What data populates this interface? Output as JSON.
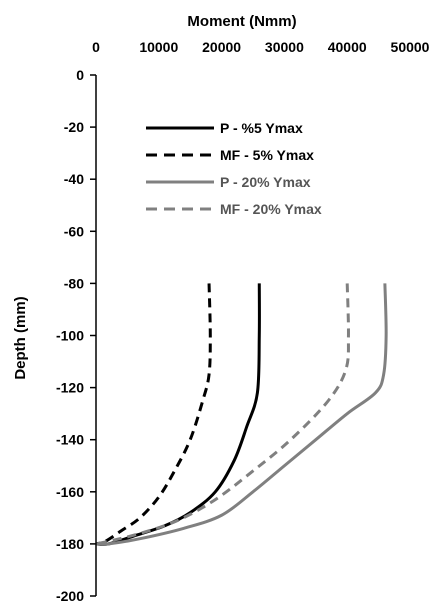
{
  "chart_data": {
    "type": "line",
    "title": "",
    "xlabel": "Moment (Nmm)",
    "ylabel": "Depth (mm)",
    "xlim": [
      0,
      50000
    ],
    "ylim": [
      -200,
      0
    ],
    "x_axis_position": "top",
    "y_axis_inverted": false,
    "grid": false,
    "legend_position": "top-left",
    "xticks": [
      0,
      10000,
      20000,
      30000,
      40000,
      50000
    ],
    "yticks": [
      0,
      -20,
      -40,
      -60,
      -80,
      -100,
      -120,
      -140,
      -160,
      -180,
      -200
    ],
    "series": [
      {
        "name": "P - %5 Ymax",
        "color": "#000000",
        "dash": "solid",
        "points": [
          [
            26000,
            -80
          ],
          [
            26000,
            -100
          ],
          [
            25700,
            -122
          ],
          [
            24000,
            -135
          ],
          [
            22000,
            -148
          ],
          [
            19000,
            -160
          ],
          [
            15000,
            -168
          ],
          [
            11000,
            -173
          ],
          [
            6000,
            -177
          ],
          [
            2000,
            -180
          ],
          [
            0,
            -180
          ]
        ]
      },
      {
        "name": "MF - 5% Ymax",
        "color": "#000000",
        "dash": "dashed",
        "points": [
          [
            18000,
            -80
          ],
          [
            18200,
            -100
          ],
          [
            18000,
            -115
          ],
          [
            17000,
            -125
          ],
          [
            15000,
            -140
          ],
          [
            12500,
            -152
          ],
          [
            10000,
            -162
          ],
          [
            7000,
            -170
          ],
          [
            4000,
            -175
          ],
          [
            1500,
            -179
          ],
          [
            0,
            -180
          ]
        ]
      },
      {
        "name": "P - 20% Ymax",
        "color": "#808080",
        "dash": "solid",
        "points": [
          [
            46000,
            -80
          ],
          [
            46200,
            -100
          ],
          [
            45800,
            -115
          ],
          [
            44500,
            -122
          ],
          [
            40000,
            -130
          ],
          [
            35000,
            -140
          ],
          [
            30000,
            -150
          ],
          [
            25000,
            -160
          ],
          [
            20000,
            -169
          ],
          [
            14000,
            -174
          ],
          [
            7000,
            -178
          ],
          [
            2000,
            -180
          ],
          [
            0,
            -180
          ]
        ]
      },
      {
        "name": "MF - 20% Ymax",
        "color": "#808080",
        "dash": "dashed",
        "points": [
          [
            40000,
            -80
          ],
          [
            40200,
            -100
          ],
          [
            39800,
            -113
          ],
          [
            37000,
            -125
          ],
          [
            31000,
            -140
          ],
          [
            25000,
            -152
          ],
          [
            19000,
            -163
          ],
          [
            13000,
            -171
          ],
          [
            7000,
            -176
          ],
          [
            2000,
            -179
          ],
          [
            0,
            -180
          ]
        ]
      }
    ]
  }
}
